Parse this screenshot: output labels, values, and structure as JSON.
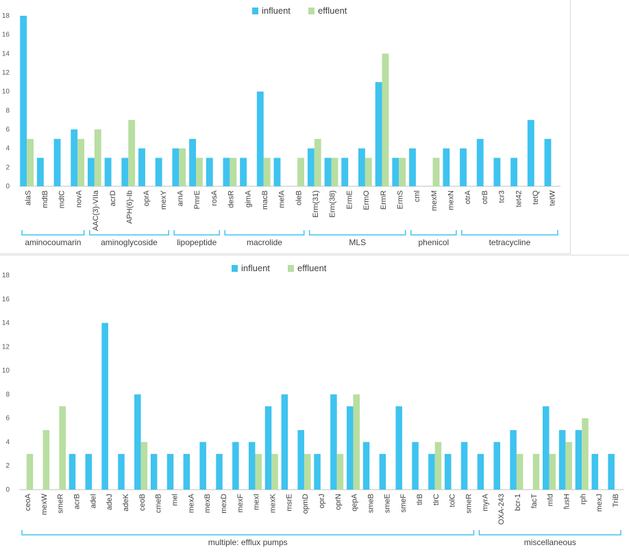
{
  "colors": {
    "influent": "#3fc3ef",
    "effluent": "#b8dea1",
    "bracket": "#3fc3ef",
    "axis": "#bfbfbf"
  },
  "chart_data": [
    {
      "type": "bar",
      "legend_position": "top-center",
      "grid": false,
      "ylim": [
        0,
        18
      ],
      "yticks": [
        0,
        2,
        4,
        6,
        8,
        10,
        12,
        14,
        16,
        18
      ],
      "categories": [
        "alaS",
        "mdtB",
        "mdtC",
        "novA",
        "AAC(3)-VIIa",
        "acrD",
        "APH(6)-Ib",
        "oprA",
        "mexY",
        "arnA",
        "PmrE",
        "rosA",
        "desR",
        "gimA",
        "macB",
        "mefA",
        "oleB",
        "Erm(31)",
        "Erm(38)",
        "ErmE",
        "ErmO",
        "ErmR",
        "ErmS",
        "cml",
        "mexM",
        "mexN",
        "otrA",
        "otrB",
        "tcr3",
        "tet42",
        "tetQ",
        "tetW"
      ],
      "series": [
        {
          "name": "influent",
          "values": [
            18,
            3,
            5,
            6,
            3,
            3,
            3,
            4,
            3,
            4,
            5,
            3,
            3,
            3,
            10,
            3,
            0,
            4,
            3,
            3,
            4,
            11,
            3,
            4,
            0,
            4,
            4,
            5,
            3,
            3,
            7,
            5
          ]
        },
        {
          "name": "effluent",
          "values": [
            5,
            0,
            0,
            5,
            6,
            0,
            7,
            0,
            0,
            4,
            3,
            0,
            3,
            0,
            3,
            0,
            3,
            5,
            3,
            0,
            3,
            14,
            3,
            0,
            3,
            0,
            0,
            0,
            0,
            0,
            0,
            0
          ]
        }
      ],
      "groups": [
        {
          "label": "aminocoumarin",
          "start": 0,
          "end": 3
        },
        {
          "label": "aminoglycoside",
          "start": 4,
          "end": 8
        },
        {
          "label": "lipopeptide",
          "start": 9,
          "end": 11
        },
        {
          "label": "macrolide",
          "start": 12,
          "end": 16
        },
        {
          "label": "MLS",
          "start": 17,
          "end": 22
        },
        {
          "label": "phenicol",
          "start": 23,
          "end": 25
        },
        {
          "label": "tetracycline",
          "start": 26,
          "end": 31
        }
      ]
    },
    {
      "type": "bar",
      "legend_position": "top-center",
      "grid": false,
      "ylim": [
        0,
        18
      ],
      "yticks": [
        0,
        2,
        4,
        6,
        8,
        10,
        12,
        14,
        16,
        18
      ],
      "categories": [
        "ceoA",
        "mexW",
        "smeR",
        "acrB",
        "adeI",
        "adeJ",
        "adeK",
        "ceoB",
        "cmeB",
        "mel",
        "mexA",
        "mexB",
        "mexD",
        "mexF",
        "mexI",
        "mexK",
        "msrE",
        "opmD",
        "oprJ",
        "oprN",
        "qepA",
        "smeB",
        "smeE",
        "smeF",
        "tlrB",
        "tlrC",
        "tolC",
        "smeR",
        "myrA",
        "OXA-243",
        "bcr-1",
        "facT",
        "mfd",
        "fusH",
        "rph",
        "mexJ",
        "TriB"
      ],
      "series": [
        {
          "name": "influent",
          "values": [
            0,
            0,
            0,
            3,
            3,
            14,
            3,
            8,
            3,
            3,
            3,
            4,
            3,
            4,
            4,
            7,
            8,
            5,
            3,
            8,
            7,
            4,
            3,
            7,
            4,
            3,
            3,
            4,
            3,
            4,
            5,
            0,
            7,
            5,
            5,
            3,
            3
          ]
        },
        {
          "name": "effluent",
          "values": [
            3,
            5,
            7,
            0,
            0,
            0,
            0,
            4,
            0,
            0,
            0,
            0,
            0,
            0,
            3,
            3,
            0,
            3,
            0,
            3,
            8,
            0,
            0,
            0,
            0,
            4,
            0,
            0,
            0,
            0,
            3,
            3,
            3,
            4,
            6,
            0,
            0
          ]
        }
      ],
      "groups": [
        {
          "label": "multiple: efflux pumps",
          "start": 0,
          "end": 27
        },
        {
          "label": "miscellaneous",
          "start": 28,
          "end": 36
        }
      ]
    }
  ]
}
